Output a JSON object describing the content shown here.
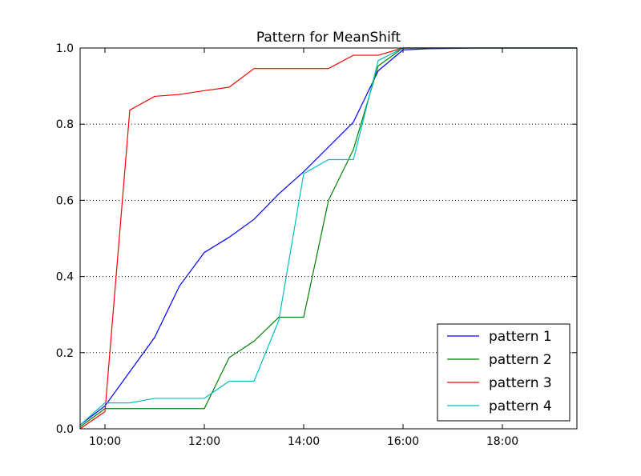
{
  "chart_data": {
    "type": "line",
    "title": "Pattern for MeanShift",
    "xlabel": "",
    "ylabel": "",
    "x_unit": "time",
    "xlim": [
      "09:30",
      "19:30"
    ],
    "ylim": [
      0.0,
      1.0
    ],
    "x_ticks": [
      "10:00",
      "12:00",
      "14:00",
      "16:00",
      "18:00"
    ],
    "y_ticks": [
      "0.0",
      "0.2",
      "0.4",
      "0.6",
      "0.8",
      "1.0"
    ],
    "grid": "horizontal dotted",
    "legend_position": "bottom-right",
    "x": [
      "09:30",
      "10:00",
      "10:30",
      "11:00",
      "11:30",
      "12:00",
      "12:30",
      "13:00",
      "13:30",
      "14:00",
      "14:30",
      "15:00",
      "15:30",
      "16:00",
      "16:30",
      "17:00",
      "17:30",
      "18:00",
      "18:30",
      "19:00",
      "19:30"
    ],
    "series": [
      {
        "name": "pattern 1",
        "color": "#0000ff",
        "values": [
          0.01,
          0.06,
          0.15,
          0.24,
          0.375,
          0.463,
          0.503,
          0.55,
          0.617,
          0.675,
          0.74,
          0.805,
          0.94,
          0.995,
          0.998,
          0.999,
          1.0,
          1.0,
          1.0,
          1.0,
          1.0
        ]
      },
      {
        "name": "pattern 2",
        "color": "#008000",
        "values": [
          0.005,
          0.053,
          0.053,
          0.053,
          0.053,
          0.053,
          0.187,
          0.23,
          0.293,
          0.293,
          0.6,
          0.733,
          0.953,
          1.0,
          1.0,
          1.0,
          1.0,
          1.0,
          1.0,
          1.0,
          1.0
        ]
      },
      {
        "name": "pattern 3",
        "color": "#ff0000",
        "values": [
          0.0,
          0.045,
          0.837,
          0.873,
          0.878,
          0.888,
          0.897,
          0.946,
          0.946,
          0.946,
          0.946,
          0.981,
          0.981,
          1.0,
          1.0,
          1.0,
          1.0,
          1.0,
          1.0,
          1.0,
          1.0
        ]
      },
      {
        "name": "pattern 4",
        "color": "#00bfbf",
        "values": [
          0.01,
          0.068,
          0.068,
          0.08,
          0.08,
          0.08,
          0.125,
          0.125,
          0.285,
          0.67,
          0.707,
          0.707,
          0.967,
          1.0,
          1.0,
          1.0,
          1.0,
          1.0,
          1.0,
          1.0,
          1.0
        ]
      }
    ]
  }
}
